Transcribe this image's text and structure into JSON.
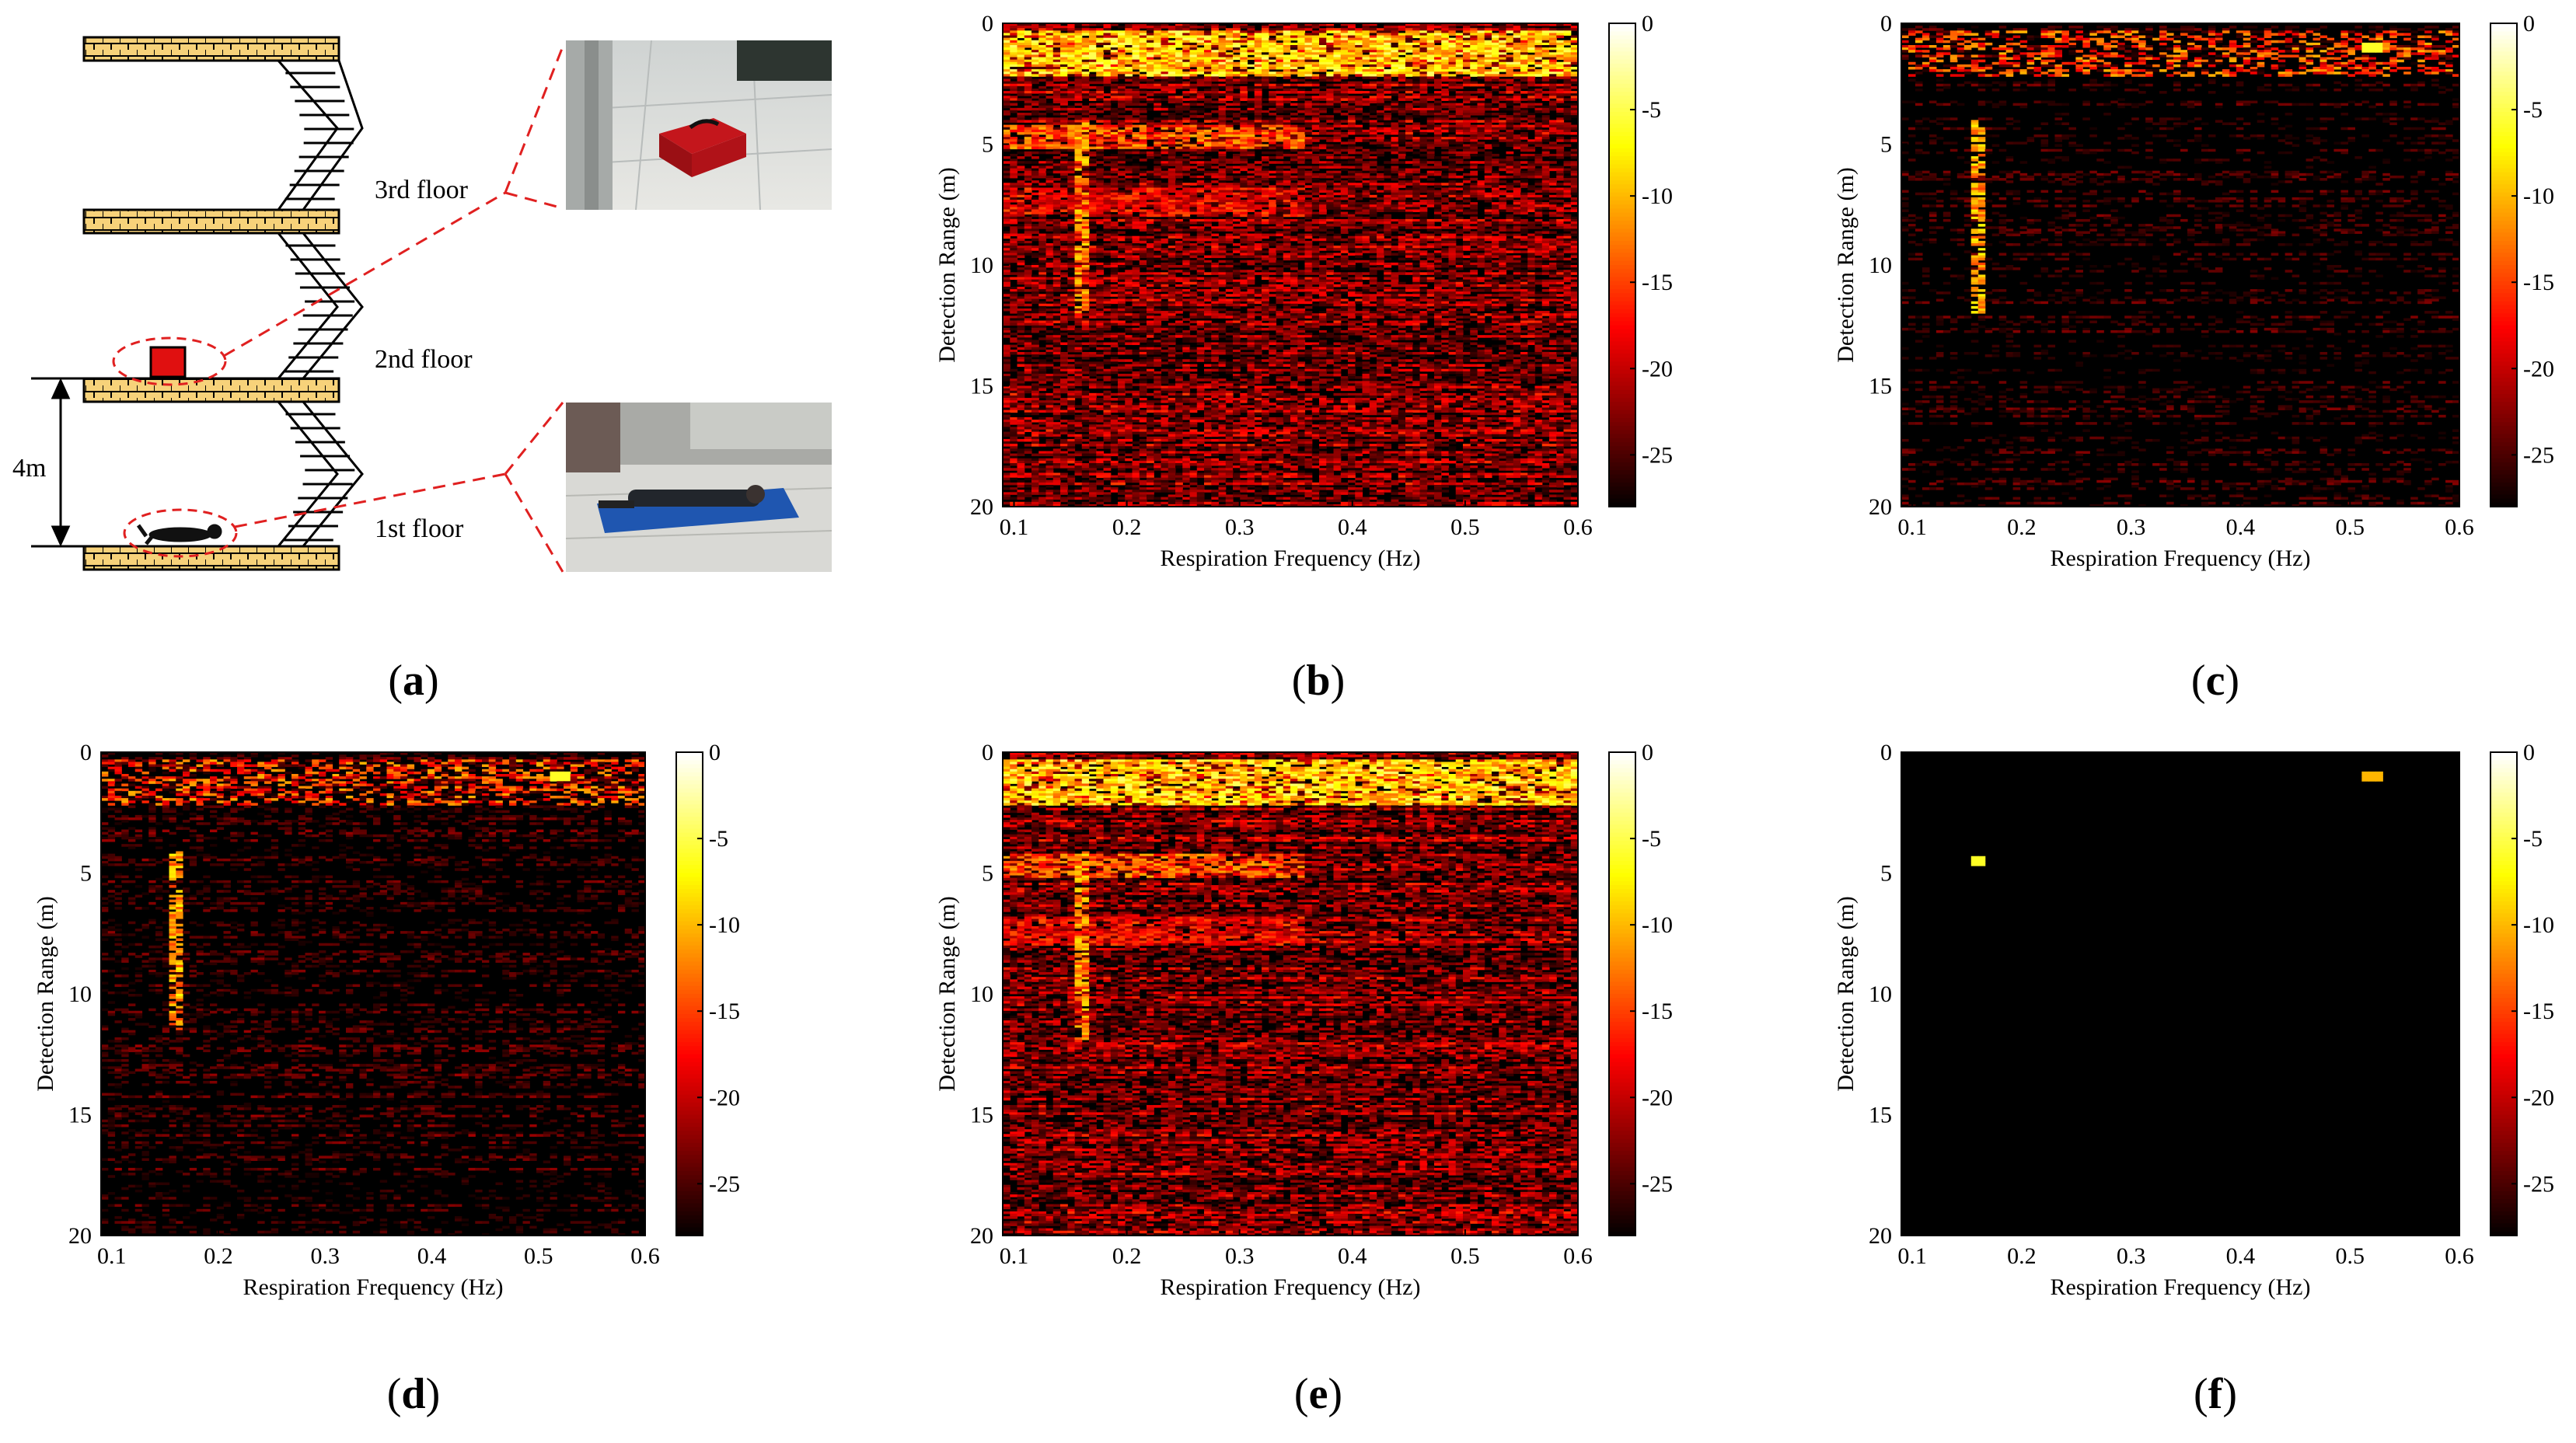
{
  "figure": {
    "panel_labels": [
      "a",
      "b",
      "c",
      "d",
      "e",
      "f"
    ]
  },
  "diagram": {
    "floors": [
      "3rd floor",
      "2nd floor",
      "1st floor"
    ],
    "height_label": "4m",
    "colors": {
      "slab": "#f7d27a",
      "target_box": "#e01010",
      "dash": "#e02020"
    }
  },
  "chart_data": [
    {
      "type": "heatmap",
      "panel": "b",
      "variant": "raw",
      "xlabel": "Respiration Frequency (Hz)",
      "ylabel": "Detection Range (m)",
      "xlim": [
        0.09,
        0.6
      ],
      "ylim": [
        0,
        20
      ],
      "xticks": [
        "0.1",
        "0.2",
        "0.3",
        "0.4",
        "0.5",
        "0.6"
      ],
      "yticks": [
        "0",
        "5",
        "10",
        "15",
        "20"
      ],
      "colorbar": {
        "min": -28,
        "max": 0,
        "ticks": [
          "0",
          "-5",
          "-10",
          "-15",
          "-20",
          "-25"
        ],
        "colormap": "hot"
      },
      "features": [
        {
          "type": "strong_rows",
          "range_m": [
            0.3,
            2.2
          ],
          "db": -4
        },
        {
          "type": "vertical_line",
          "freq_hz": 0.16,
          "range_m": [
            4,
            12
          ],
          "db": -8
        },
        {
          "type": "target_band",
          "range_m": [
            4.2,
            5.2
          ],
          "db": -10
        },
        {
          "type": "target_band",
          "range_m": [
            6.8,
            8.0
          ],
          "db": -14
        }
      ],
      "noise_floor_db": -22
    },
    {
      "type": "heatmap",
      "panel": "c",
      "variant": "suppressed",
      "xlabel": "Respiration Frequency (Hz)",
      "ylabel": "Detection Range (m)",
      "xlim": [
        0.09,
        0.6
      ],
      "ylim": [
        0,
        20
      ],
      "xticks": [
        "0.1",
        "0.2",
        "0.3",
        "0.4",
        "0.5",
        "0.6"
      ],
      "yticks": [
        "0",
        "5",
        "10",
        "15",
        "20"
      ],
      "colorbar": {
        "min": -28,
        "max": 0,
        "ticks": [
          "0",
          "-5",
          "-10",
          "-15",
          "-20",
          "-25"
        ],
        "colormap": "hot"
      },
      "features": [
        {
          "type": "strong_rows",
          "range_m": [
            0.3,
            2.2
          ],
          "db": -10
        },
        {
          "type": "vertical_line",
          "freq_hz": 0.16,
          "range_m": [
            4,
            12
          ],
          "db": -7
        },
        {
          "type": "hot_spot",
          "freq_hz": 0.52,
          "range_m": 1.0,
          "db": -6
        }
      ],
      "noise_floor_db": -27
    },
    {
      "type": "heatmap",
      "panel": "d",
      "variant": "suppressed",
      "xlabel": "Respiration Frequency (Hz)",
      "ylabel": "Detection Range (m)",
      "xlim": [
        0.09,
        0.6
      ],
      "ylim": [
        0,
        20
      ],
      "xticks": [
        "0.1",
        "0.2",
        "0.3",
        "0.4",
        "0.5",
        "0.6"
      ],
      "yticks": [
        "0",
        "5",
        "10",
        "15",
        "20"
      ],
      "colorbar": {
        "min": -28,
        "max": 0,
        "ticks": [
          "0",
          "-5",
          "-10",
          "-15",
          "-20",
          "-25"
        ],
        "colormap": "hot"
      },
      "features": [
        {
          "type": "strong_rows",
          "range_m": [
            0.3,
            2.2
          ],
          "db": -10
        },
        {
          "type": "vertical_line",
          "freq_hz": 0.16,
          "range_m": [
            4,
            11.5
          ],
          "db": -7
        },
        {
          "type": "hot_spot",
          "freq_hz": 0.52,
          "range_m": 1.0,
          "db": -6
        }
      ],
      "noise_floor_db": -26
    },
    {
      "type": "heatmap",
      "panel": "e",
      "variant": "raw",
      "xlabel": "Respiration Frequency (Hz)",
      "ylabel": "Detection Range (m)",
      "xlim": [
        0.09,
        0.6
      ],
      "ylim": [
        0,
        20
      ],
      "xticks": [
        "0.1",
        "0.2",
        "0.3",
        "0.4",
        "0.5",
        "0.6"
      ],
      "yticks": [
        "0",
        "5",
        "10",
        "15",
        "20"
      ],
      "colorbar": {
        "min": -28,
        "max": 0,
        "ticks": [
          "0",
          "-5",
          "-10",
          "-15",
          "-20",
          "-25"
        ],
        "colormap": "hot"
      },
      "features": [
        {
          "type": "strong_rows",
          "range_m": [
            0.3,
            2.2
          ],
          "db": -4
        },
        {
          "type": "vertical_line",
          "freq_hz": 0.16,
          "range_m": [
            4,
            12
          ],
          "db": -8
        },
        {
          "type": "target_band",
          "range_m": [
            4.2,
            5.2
          ],
          "db": -10
        },
        {
          "type": "target_band",
          "range_m": [
            6.8,
            8.0
          ],
          "db": -14
        }
      ],
      "noise_floor_db": -22
    },
    {
      "type": "heatmap",
      "panel": "f",
      "variant": "clean",
      "xlabel": "Respiration Frequency (Hz)",
      "ylabel": "Detection Range (m)",
      "xlim": [
        0.09,
        0.6
      ],
      "ylim": [
        0,
        20
      ],
      "xticks": [
        "0.1",
        "0.2",
        "0.3",
        "0.4",
        "0.5",
        "0.6"
      ],
      "yticks": [
        "0",
        "5",
        "10",
        "15",
        "20"
      ],
      "colorbar": {
        "min": -28,
        "max": 0,
        "ticks": [
          "0",
          "-5",
          "-10",
          "-15",
          "-20",
          "-25"
        ],
        "colormap": "hot"
      },
      "features": [
        {
          "type": "peak",
          "freq_hz": 0.16,
          "range_m": 4.5,
          "db": -6
        },
        {
          "type": "peak",
          "freq_hz": 0.52,
          "range_m": 1.0,
          "db": -10
        }
      ],
      "noise_floor_db": -28
    }
  ]
}
